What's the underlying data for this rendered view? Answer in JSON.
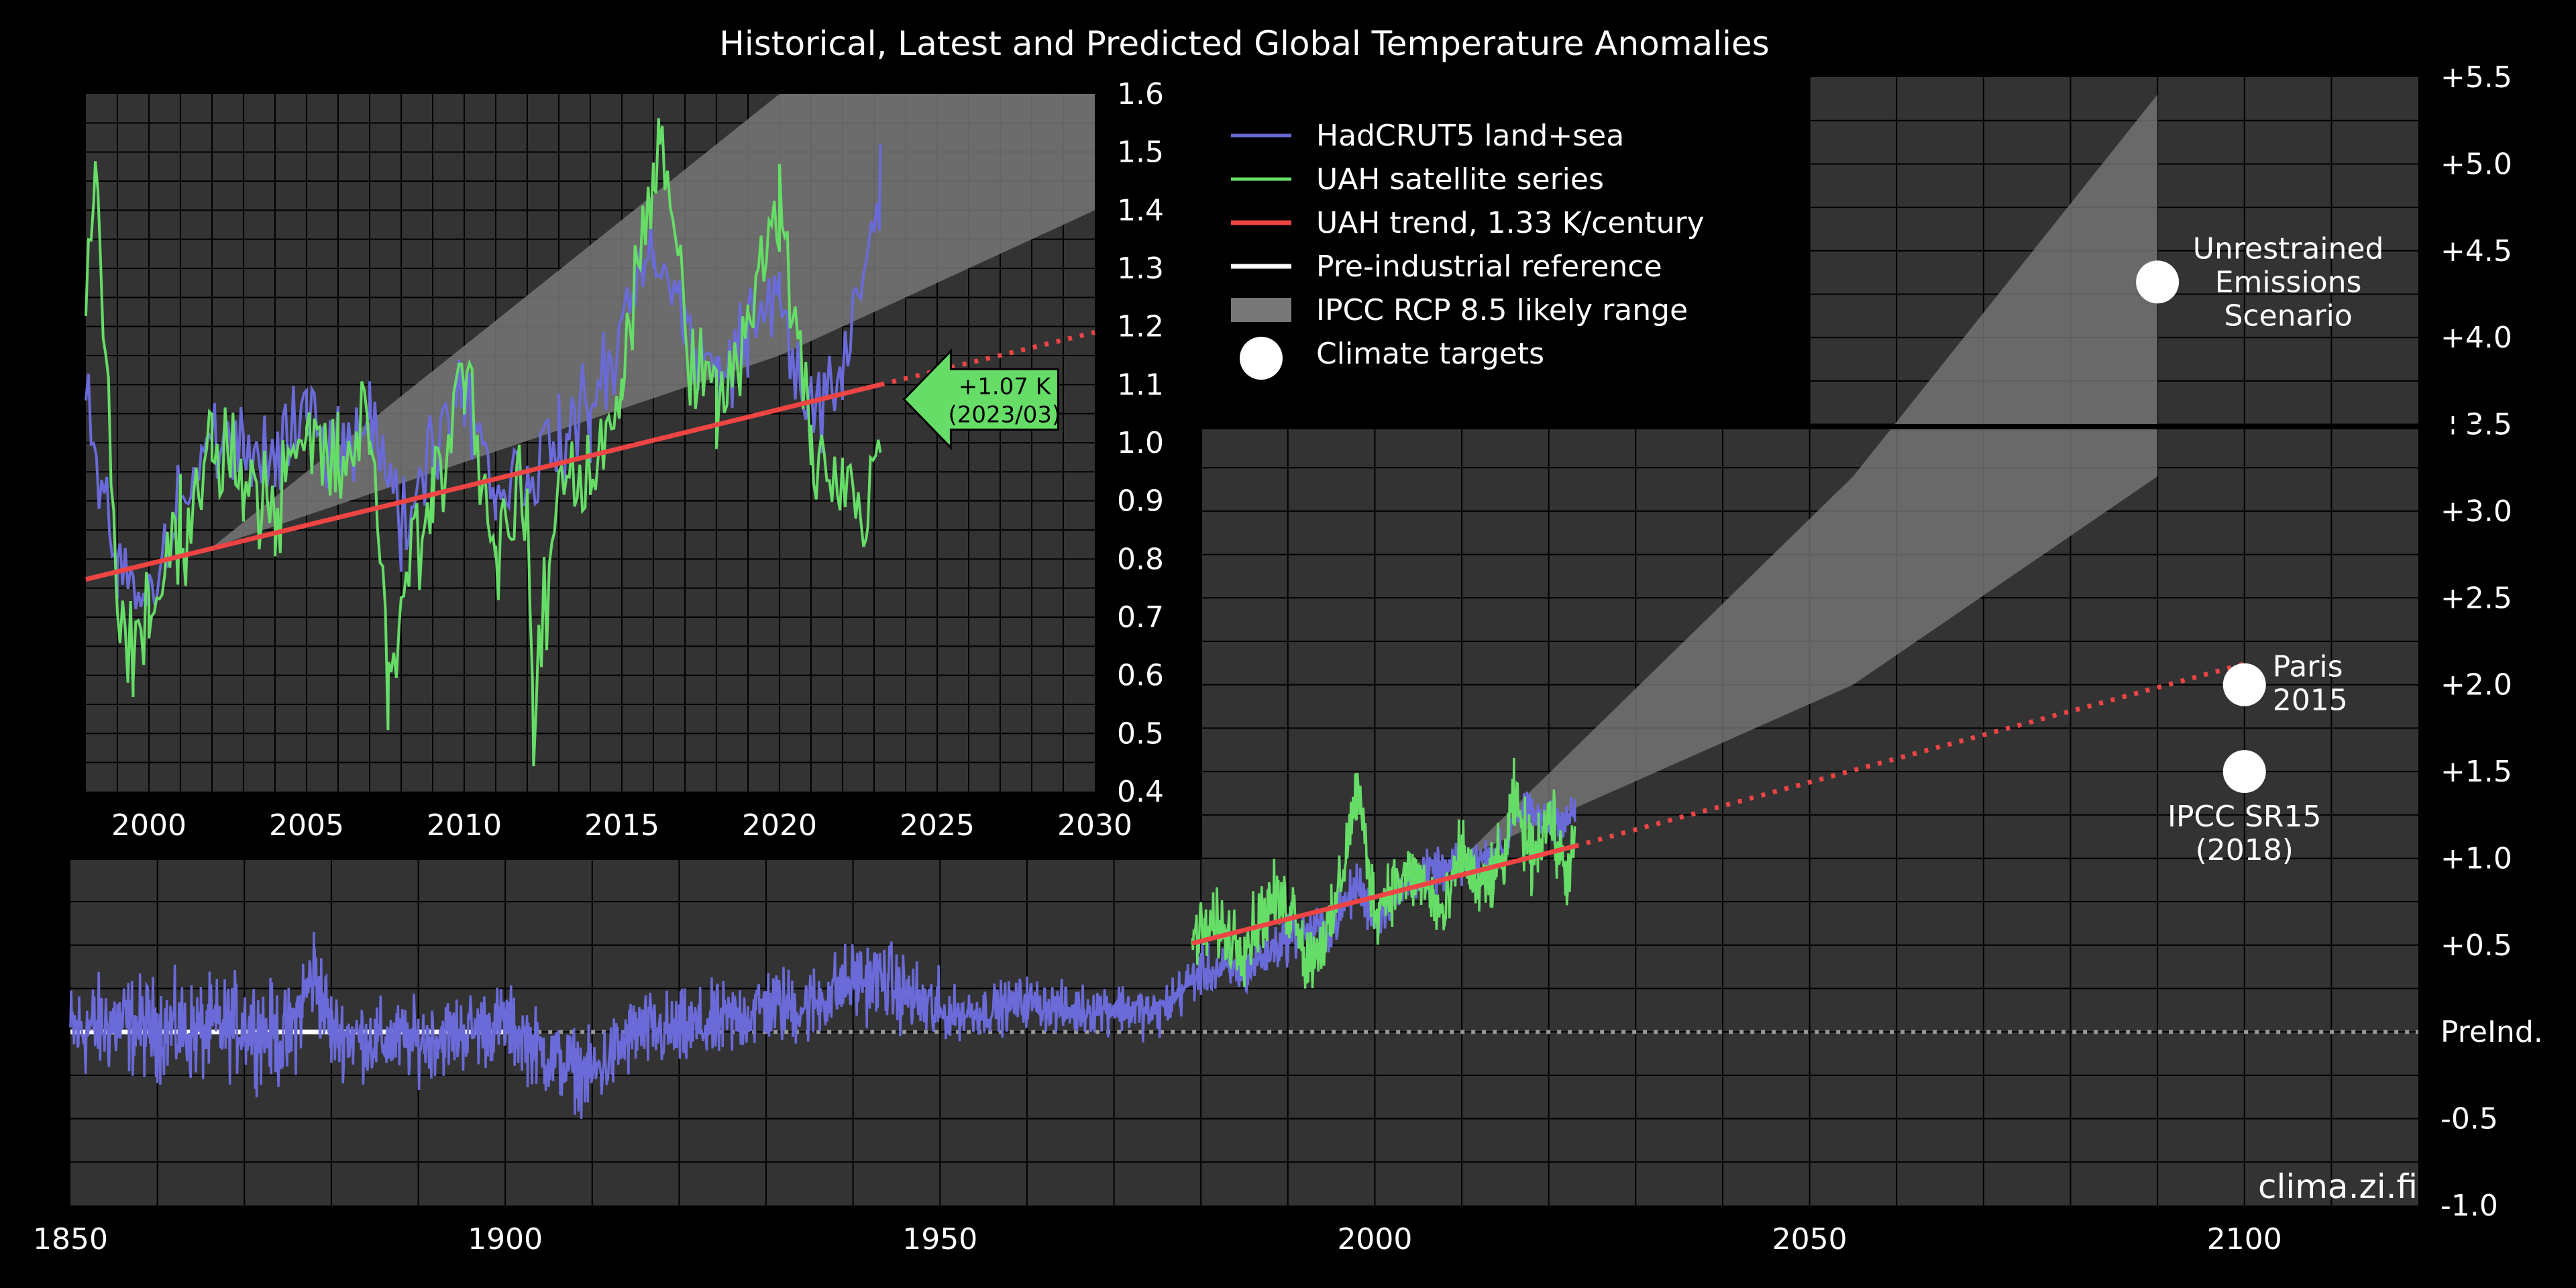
{
  "colors": {
    "background": "#000000",
    "plot_bg": "#333333",
    "grid": "#000000",
    "hadcrut": "#6a6ad8",
    "uah": "#66dd66",
    "trend": "#ee4444",
    "reference": "#ffffff",
    "ipcc_band": "#777777",
    "callout": "#66dd66"
  },
  "chart_data": [
    {
      "id": "main",
      "type": "line",
      "title": "Historical, Latest and Predicted Global Temperature Anomalies",
      "xlim": [
        1850,
        2120
      ],
      "ylim": [
        -1.0,
        5.5
      ],
      "x_ticks": [
        "1850",
        "1900",
        "1950",
        "2000",
        "2050",
        "2100"
      ],
      "x_tick_values": [
        1850,
        1900,
        1950,
        2000,
        2050,
        2100
      ],
      "y_ticks": [
        "-1.0",
        "-0.5",
        "PreInd.",
        "+0.5",
        "+1.0",
        "+1.5",
        "+2.0",
        "+2.5",
        "+3.0",
        "+3.5",
        "+4.0",
        "+4.5",
        "+5.0",
        "+5.5"
      ],
      "y_tick_values": [
        -1.0,
        -0.5,
        0.0,
        0.5,
        1.0,
        1.5,
        2.0,
        2.5,
        3.0,
        3.5,
        4.0,
        4.5,
        5.0,
        5.5
      ],
      "grid": true,
      "legend_position": "top-center",
      "series": [
        {
          "name": "HadCRUT5 land+sea",
          "kind": "line",
          "x": [
            1850,
            1855,
            1860,
            1865,
            1870,
            1875,
            1878,
            1880,
            1885,
            1890,
            1895,
            1900,
            1905,
            1910,
            1915,
            1920,
            1925,
            1930,
            1935,
            1940,
            1944,
            1945,
            1950,
            1955,
            1960,
            1965,
            1970,
            1975,
            1980,
            1985,
            1990,
            1995,
            1998,
            2000,
            2005,
            2010,
            2015,
            2016,
            2020,
            2023
          ],
          "y": [
            0.0,
            0.05,
            0.02,
            0.0,
            0.05,
            -0.05,
            0.35,
            0.0,
            -0.05,
            -0.05,
            0.0,
            0.05,
            -0.15,
            -0.25,
            0.0,
            0.0,
            0.05,
            0.15,
            0.15,
            0.3,
            0.3,
            0.25,
            0.1,
            0.12,
            0.18,
            0.12,
            0.15,
            0.1,
            0.35,
            0.35,
            0.55,
            0.6,
            0.85,
            0.65,
            0.9,
            0.95,
            1.05,
            1.28,
            1.2,
            1.25
          ]
        },
        {
          "name": "UAH satellite series",
          "kind": "line",
          "x": [
            1979,
            1982,
            1985,
            1988,
            1991,
            1992,
            1995,
            1998,
            2000,
            2002,
            2005,
            2008,
            2010,
            2012,
            2015,
            2016,
            2018,
            2020,
            2022,
            2023
          ],
          "y": [
            0.55,
            0.6,
            0.5,
            0.75,
            0.7,
            0.4,
            0.6,
            1.4,
            0.7,
            0.85,
            0.9,
            0.65,
            1.05,
            0.8,
            1.0,
            1.35,
            1.0,
            1.25,
            0.9,
            1.1
          ]
        },
        {
          "name": "UAH trend, 1.33 K/century",
          "kind": "line",
          "x": [
            1979,
            2023
          ],
          "y": [
            0.51,
            1.07
          ],
          "projection": {
            "x": [
              2023,
              2100
            ],
            "y": [
              1.07,
              2.12
            ]
          }
        },
        {
          "name": "Pre-industrial reference",
          "kind": "line",
          "x": [
            1850,
            1900
          ],
          "y": [
            0.0,
            0.0
          ],
          "extension": {
            "x": [
              1900,
              2120
            ],
            "y": [
              0.0,
              0.0
            ]
          }
        },
        {
          "name": "IPCC RCP 8.5 likely range",
          "kind": "band",
          "x": [
            2010,
            2055,
            2090
          ],
          "upper": [
            1.0,
            3.2,
            5.4
          ],
          "lower": [
            1.0,
            2.0,
            3.2
          ]
        },
        {
          "name": "Climate targets",
          "kind": "markers",
          "points": [
            {
              "x": 2090,
              "y": 4.32,
              "label": "Unrestrained Emissions Scenario"
            },
            {
              "x": 2100,
              "y": 2.0,
              "label": "Paris 2015"
            },
            {
              "x": 2100,
              "y": 1.5,
              "label": "IPCC SR15 (2018)"
            }
          ]
        }
      ],
      "watermark": "clima.zi.fi"
    },
    {
      "id": "inset",
      "type": "line",
      "xlim": [
        1998,
        2030
      ],
      "ylim": [
        0.4,
        1.6
      ],
      "x_ticks": [
        "2000",
        "2005",
        "2010",
        "2015",
        "2020",
        "2025",
        "2030"
      ],
      "x_tick_values": [
        2000,
        2005,
        2010,
        2015,
        2020,
        2025,
        2030
      ],
      "y_ticks": [
        "0.4",
        "0.5",
        "0.6",
        "0.7",
        "0.8",
        "0.9",
        "1.0",
        "1.1",
        "1.2",
        "1.3",
        "1.4",
        "1.5",
        "1.6"
      ],
      "y_tick_values": [
        0.4,
        0.5,
        0.6,
        0.7,
        0.8,
        0.9,
        1.0,
        1.1,
        1.2,
        1.3,
        1.4,
        1.5,
        1.6
      ],
      "grid": true,
      "series": [
        {
          "name": "HadCRUT5 land+sea",
          "x": [
            1998,
            1999,
            2000,
            2001,
            2002,
            2003,
            2004,
            2005,
            2006,
            2007,
            2008,
            2009,
            2010,
            2011,
            2012,
            2013,
            2014,
            2015,
            2016,
            2017,
            2018,
            2019,
            2020,
            2021,
            2022,
            2023.2
          ],
          "y": [
            1.05,
            0.78,
            0.72,
            0.9,
            1.0,
            1.0,
            0.95,
            1.05,
            1.0,
            1.05,
            0.85,
            1.0,
            1.1,
            0.92,
            0.95,
            1.0,
            1.05,
            1.2,
            1.35,
            1.2,
            1.1,
            1.2,
            1.25,
            1.05,
            1.1,
            1.45
          ]
        },
        {
          "name": "UAH satellite series",
          "x": [
            1998,
            1998.3,
            1999,
            1999.5,
            2000,
            2001,
            2002,
            2003,
            2004,
            2005,
            2006,
            2007,
            2007.6,
            2008,
            2009,
            2010,
            2011,
            2012,
            2012.2,
            2013,
            2014,
            2015,
            2016,
            2016.2,
            2017,
            2018,
            2019,
            2020,
            2021,
            2022,
            2022.8,
            2023.2
          ],
          "y": [
            1.2,
            1.5,
            0.75,
            0.6,
            0.7,
            0.85,
            1.0,
            0.95,
            0.9,
            1.0,
            0.95,
            1.05,
            0.55,
            0.75,
            0.9,
            1.15,
            0.8,
            0.9,
            0.5,
            0.95,
            0.95,
            1.1,
            1.45,
            1.55,
            1.2,
            1.05,
            1.2,
            1.4,
            1.0,
            0.95,
            0.85,
            1.07
          ]
        },
        {
          "name": "UAH trend, 1.33 K/century",
          "x": [
            1998,
            2023.2
          ],
          "y": [
            0.765,
            1.1
          ],
          "projection": {
            "x": [
              2023.2,
              2030
            ],
            "y": [
              1.1,
              1.19
            ]
          }
        },
        {
          "name": "IPCC RCP 8.5 likely range",
          "x": [
            2002,
            2020,
            2030
          ],
          "upper": [
            0.82,
            1.6,
            1.6
          ],
          "lower": [
            0.82,
            1.15,
            1.4
          ]
        }
      ],
      "callout": {
        "line1": "+1.07 K",
        "line2": "(2023/03)",
        "x": 2023.2,
        "y": 1.07
      }
    }
  ]
}
